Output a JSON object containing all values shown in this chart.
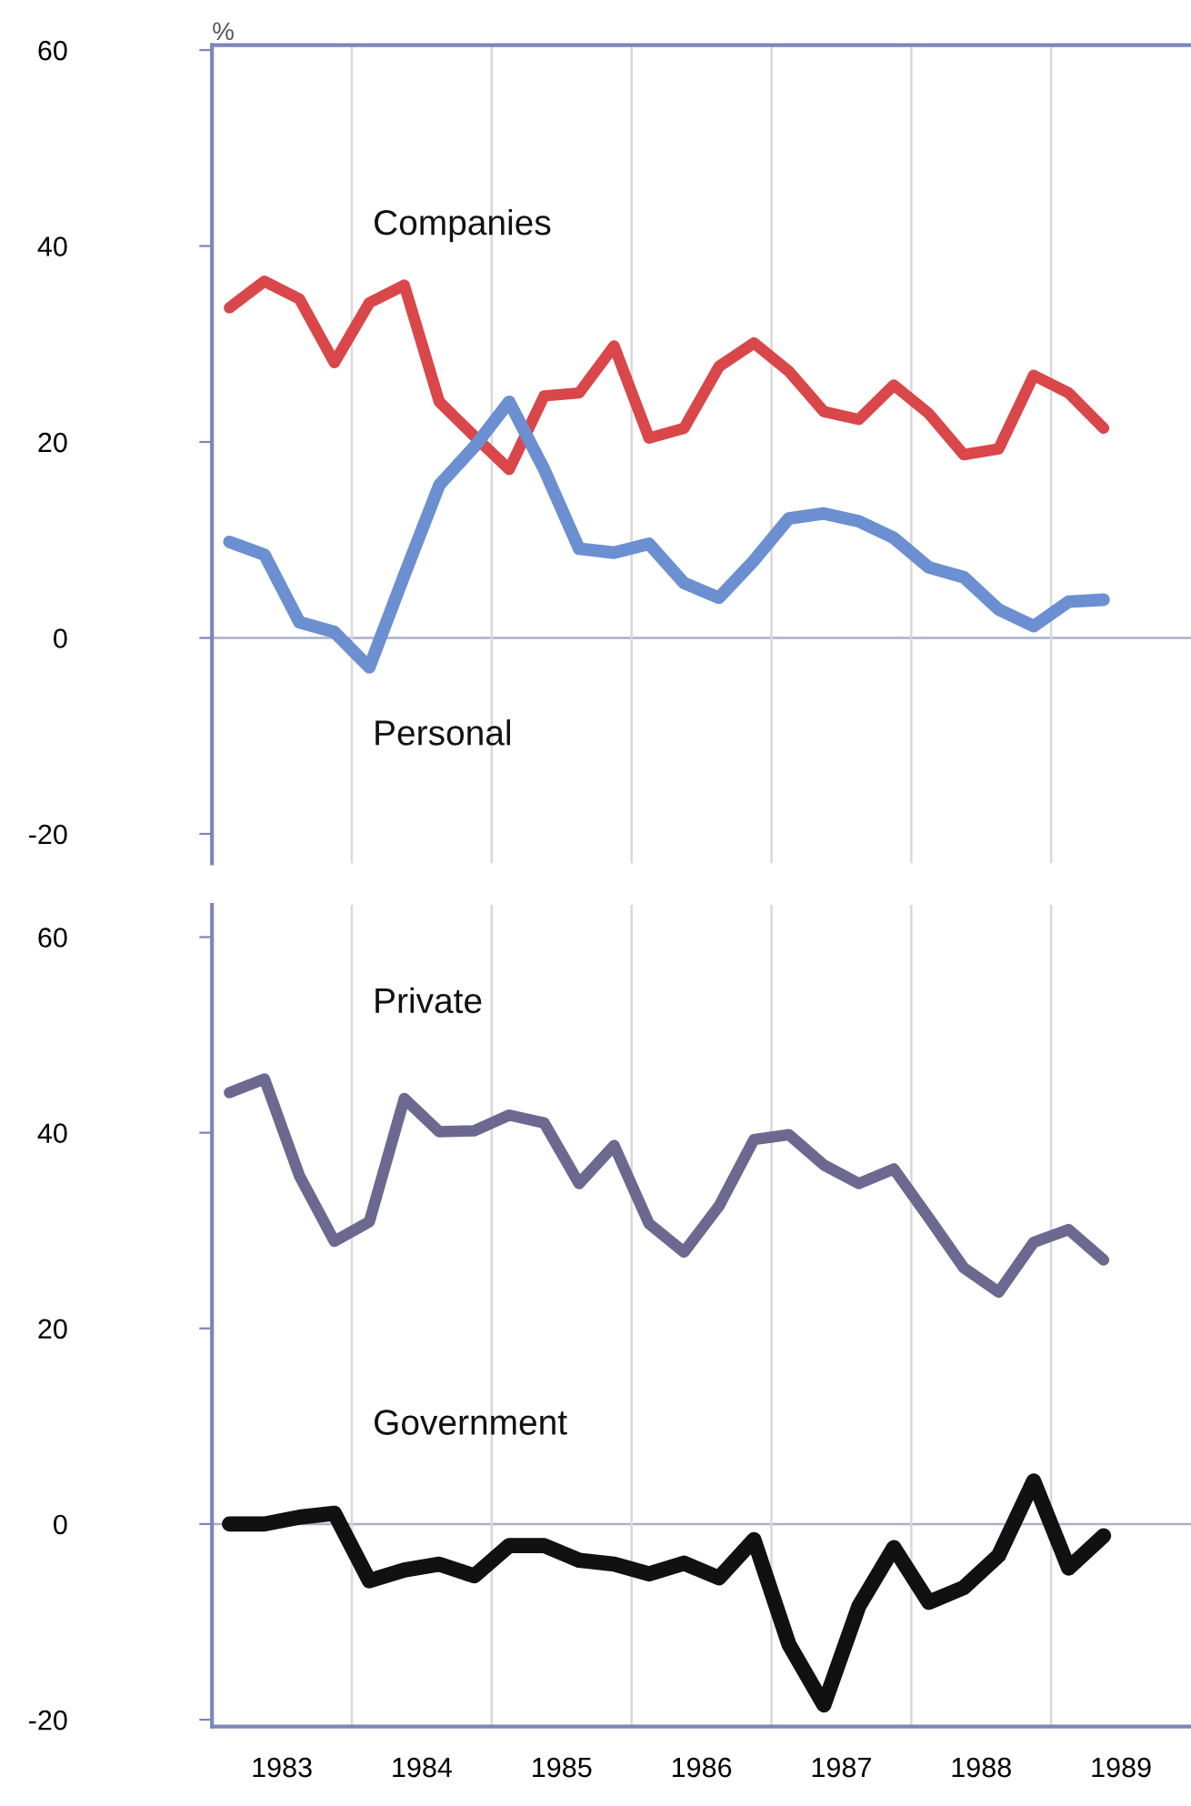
{
  "chart_data": [
    {
      "type": "line",
      "ylabel": "%",
      "x": [
        1983.125,
        1983.375,
        1983.625,
        1983.875,
        1984.125,
        1984.375,
        1984.625,
        1984.875,
        1985.125,
        1985.375,
        1985.625,
        1985.875,
        1986.125,
        1986.375,
        1986.625,
        1986.875,
        1987.125,
        1987.375,
        1987.625,
        1987.875,
        1988.125,
        1988.375,
        1988.625,
        1988.875,
        1989.125,
        1989.375
      ],
      "series": [
        {
          "name": "Companies",
          "color": "#d9474a",
          "values": [
            33.7,
            36.4,
            34.6,
            28.1,
            34.2,
            36.0,
            24.1,
            20.6,
            17.2,
            24.7,
            25.0,
            29.8,
            20.4,
            21.4,
            27.7,
            30.1,
            27.2,
            23.1,
            22.3,
            25.8,
            22.9,
            18.7,
            19.3,
            26.8,
            25.0,
            21.4
          ]
        },
        {
          "name": "Personal",
          "color": "#6b8fd1",
          "values": [
            9.8,
            8.5,
            1.6,
            0.6,
            -3.0,
            6.4,
            15.6,
            19.5,
            24.1,
            17.2,
            9.1,
            8.7,
            9.6,
            5.6,
            4.1,
            7.9,
            12.2,
            12.7,
            11.9,
            10.2,
            7.2,
            6.2,
            2.9,
            1.2,
            3.7,
            3.9
          ]
        }
      ],
      "xlim": [
        1983,
        1990
      ],
      "ylim": [
        -23,
        60.5
      ],
      "yticks": [
        -20,
        0,
        20,
        40,
        60
      ],
      "tick_labels": "y",
      "ref_lines": [
        {
          "axis": "y",
          "value": 0
        },
        {
          "axis": "x",
          "value": 1984
        },
        {
          "axis": "x",
          "value": 1985
        },
        {
          "axis": "x",
          "value": 1986
        },
        {
          "axis": "x",
          "value": 1987
        },
        {
          "axis": "x",
          "value": 1988
        },
        {
          "axis": "x",
          "value": 1989
        }
      ]
    },
    {
      "type": "line",
      "x": [
        1983.125,
        1983.375,
        1983.625,
        1983.875,
        1984.125,
        1984.375,
        1984.625,
        1984.875,
        1985.125,
        1985.375,
        1985.625,
        1985.875,
        1986.125,
        1986.375,
        1986.625,
        1986.875,
        1987.125,
        1987.375,
        1987.625,
        1987.875,
        1988.125,
        1988.375,
        1988.625,
        1988.875,
        1989.125,
        1989.375
      ],
      "series": [
        {
          "name": "Private",
          "color": "#6c6890",
          "values": [
            44.1,
            45.5,
            35.6,
            28.9,
            30.9,
            43.5,
            40.1,
            40.2,
            41.8,
            41.0,
            34.8,
            38.7,
            30.7,
            27.8,
            32.5,
            39.3,
            39.8,
            36.7,
            34.8,
            36.3,
            31.3,
            26.2,
            23.7,
            28.8,
            30.1,
            27.0
          ]
        },
        {
          "name": "Government",
          "color": "#111111",
          "values": [
            0.0,
            0.0,
            0.7,
            1.1,
            -5.8,
            -4.7,
            -4.1,
            -5.3,
            -2.2,
            -2.2,
            -3.7,
            -4.1,
            -5.1,
            -4.0,
            -5.5,
            -1.6,
            -12.3,
            -18.5,
            -8.4,
            -2.4,
            -8.0,
            -6.5,
            -3.2,
            4.4,
            -4.5,
            -1.2
          ]
        }
      ],
      "xlim": [
        1983,
        1990
      ],
      "ylim": [
        -20.7,
        63.3
      ],
      "yticks": [
        -20,
        0,
        20,
        40,
        60
      ],
      "xticks": [
        {
          "value": 1983.5,
          "label": "1983"
        },
        {
          "value": 1984.5,
          "label": "1984"
        },
        {
          "value": 1985.5,
          "label": "1985"
        },
        {
          "value": 1986.5,
          "label": "1986"
        },
        {
          "value": 1987.5,
          "label": "1987"
        },
        {
          "value": 1988.5,
          "label": "1988"
        },
        {
          "value": 1989.5,
          "label": "1989"
        }
      ],
      "ref_lines": [
        {
          "axis": "y",
          "value": 0
        },
        {
          "axis": "x",
          "value": 1984
        },
        {
          "axis": "x",
          "value": 1985
        },
        {
          "axis": "x",
          "value": 1986
        },
        {
          "axis": "x",
          "value": 1987
        },
        {
          "axis": "x",
          "value": 1988
        },
        {
          "axis": "x",
          "value": 1989
        }
      ]
    }
  ]
}
